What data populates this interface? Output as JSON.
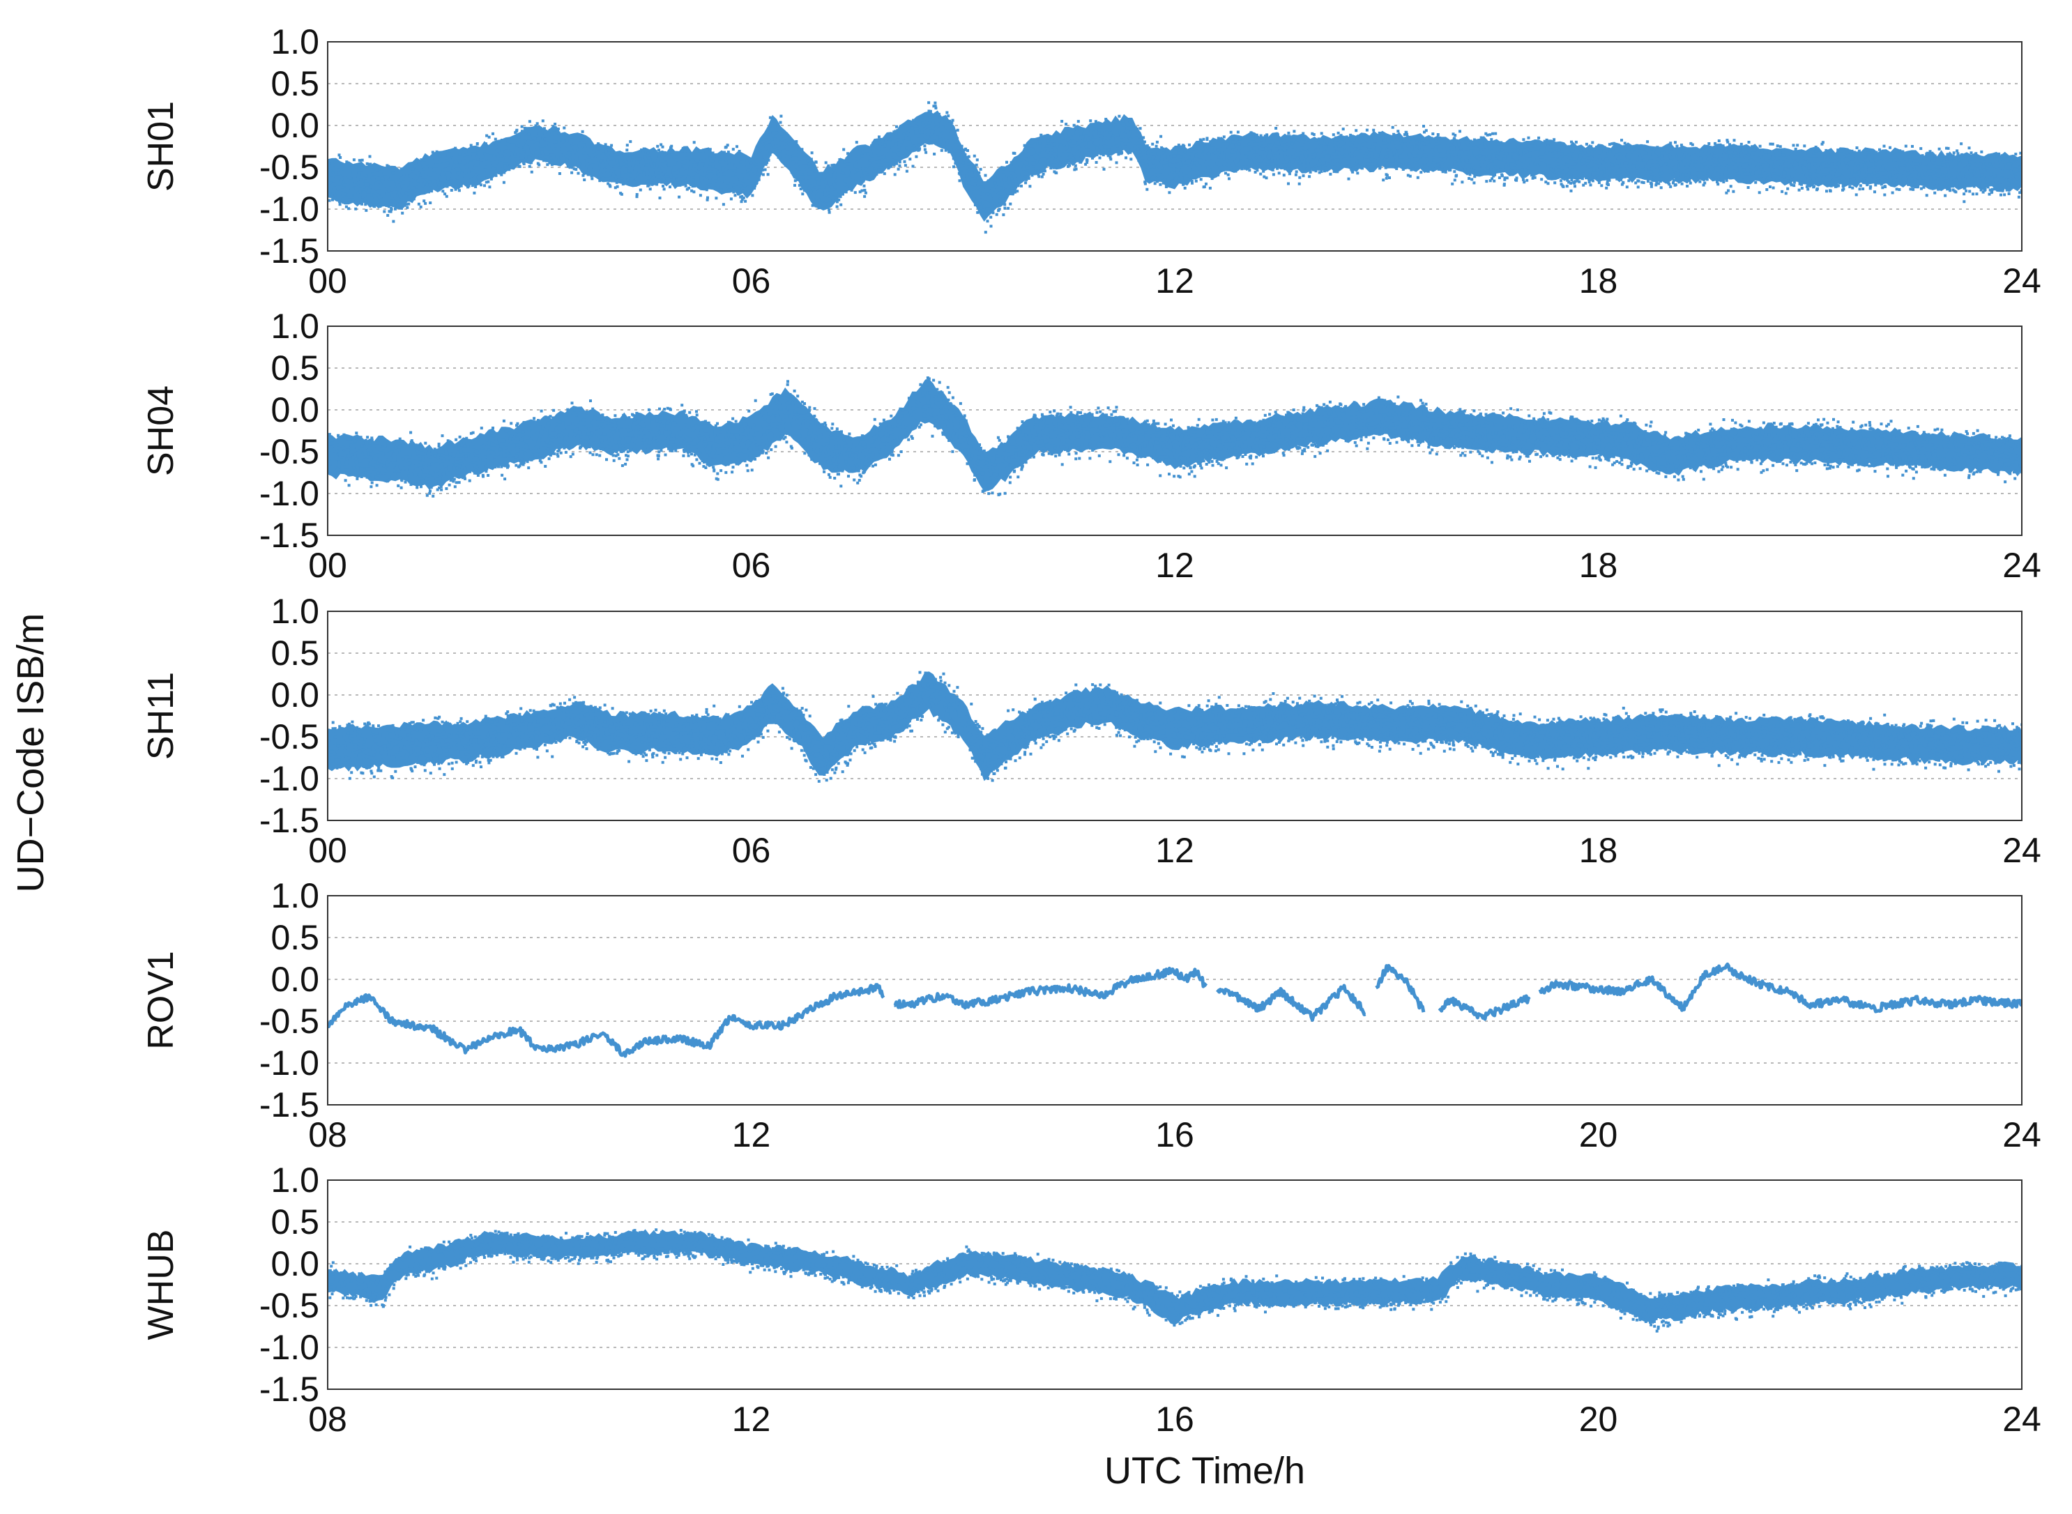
{
  "figure": {
    "ylabel": "UD−Code ISB/m",
    "xlabel": "UTC Time/h"
  },
  "colors": {
    "series": "#4391d0",
    "frame": "#333333",
    "grid": "#b8b8b8"
  },
  "chart_data": [
    {
      "type": "scatter",
      "panel_label": "SH01",
      "x_range_h": [
        0,
        24
      ],
      "x_ticks": [
        "00",
        "06",
        "12",
        "18",
        "24"
      ],
      "ylim": [
        -1.5,
        1.0
      ],
      "y_ticks": [
        "1.0",
        "0.5",
        "0.0",
        "-0.5",
        "-1.0",
        "-1.5"
      ],
      "grid": "horizontal-dotted",
      "style": "dense-band",
      "series": [
        {
          "name": "SH01",
          "x": [
            0,
            1,
            1.5,
            2,
            3,
            3.5,
            4,
            5,
            5.5,
            6,
            6.3,
            6.7,
            7,
            7.5,
            8,
            8.5,
            8.8,
            9,
            9.3,
            9.6,
            10,
            11,
            11.4,
            11.6,
            12,
            13,
            14,
            15,
            16,
            17,
            18,
            19,
            20,
            21,
            22,
            23,
            24
          ],
          "y": [
            -0.65,
            -0.75,
            -0.55,
            -0.5,
            -0.2,
            -0.3,
            -0.5,
            -0.5,
            -0.55,
            -0.6,
            -0.1,
            -0.5,
            -0.8,
            -0.5,
            -0.3,
            0.0,
            -0.1,
            -0.5,
            -0.9,
            -0.7,
            -0.35,
            -0.15,
            -0.1,
            -0.45,
            -0.5,
            -0.3,
            -0.35,
            -0.3,
            -0.35,
            -0.4,
            -0.45,
            -0.45,
            -0.45,
            -0.5,
            -0.5,
            -0.55,
            -0.55
          ],
          "spread": [
            0.35,
            0.35,
            0.32,
            0.32,
            0.28,
            0.3,
            0.3,
            0.32,
            0.35,
            0.35,
            0.3,
            0.32,
            0.35,
            0.32,
            0.3,
            0.3,
            0.3,
            0.32,
            0.35,
            0.32,
            0.3,
            0.3,
            0.3,
            0.3,
            0.32,
            0.3,
            0.3,
            0.3,
            0.3,
            0.3,
            0.3,
            0.3,
            0.3,
            0.3,
            0.3,
            0.3,
            0.3
          ]
        }
      ]
    },
    {
      "type": "scatter",
      "panel_label": "SH04",
      "x_range_h": [
        0,
        24
      ],
      "x_ticks": [
        "00",
        "06",
        "12",
        "18",
        "24"
      ],
      "ylim": [
        -1.5,
        1.0
      ],
      "y_ticks": [
        "1.0",
        "0.5",
        "0.0",
        "-0.5",
        "-1.0",
        "-1.5"
      ],
      "grid": "horizontal-dotted",
      "style": "dense-band",
      "series": [
        {
          "name": "SH04",
          "x": [
            0,
            1,
            1.5,
            2,
            3,
            3.5,
            4,
            5,
            5.5,
            6,
            6.5,
            7,
            7.5,
            8,
            8.5,
            9,
            9.3,
            9.6,
            10,
            11,
            12,
            13,
            14,
            15,
            16,
            17,
            18,
            18.5,
            19,
            20,
            21,
            22,
            23,
            24
          ],
          "y": [
            -0.55,
            -0.6,
            -0.7,
            -0.55,
            -0.35,
            -0.2,
            -0.3,
            -0.25,
            -0.45,
            -0.35,
            0.0,
            -0.45,
            -0.55,
            -0.3,
            0.15,
            -0.3,
            -0.75,
            -0.6,
            -0.3,
            -0.25,
            -0.45,
            -0.35,
            -0.2,
            -0.1,
            -0.25,
            -0.3,
            -0.35,
            -0.4,
            -0.55,
            -0.4,
            -0.4,
            -0.45,
            -0.5,
            -0.55
          ],
          "spread": [
            0.35,
            0.35,
            0.35,
            0.32,
            0.32,
            0.32,
            0.32,
            0.32,
            0.35,
            0.38,
            0.4,
            0.35,
            0.32,
            0.3,
            0.35,
            0.32,
            0.35,
            0.32,
            0.32,
            0.3,
            0.32,
            0.3,
            0.3,
            0.3,
            0.3,
            0.3,
            0.3,
            0.32,
            0.32,
            0.3,
            0.3,
            0.3,
            0.3,
            0.3
          ]
        }
      ]
    },
    {
      "type": "scatter",
      "panel_label": "SH11",
      "x_range_h": [
        0,
        24
      ],
      "x_ticks": [
        "00",
        "06",
        "12",
        "18",
        "24"
      ],
      "ylim": [
        -1.5,
        1.0
      ],
      "y_ticks": [
        "1.0",
        "0.5",
        "0.0",
        "-0.5",
        "-1.0",
        "-1.5"
      ],
      "grid": "horizontal-dotted",
      "style": "dense-band",
      "series": [
        {
          "name": "SH11",
          "x": [
            0,
            1,
            2,
            3,
            3.5,
            4,
            5,
            5.5,
            6,
            6.3,
            6.7,
            7,
            7.5,
            8,
            8.5,
            9,
            9.3,
            9.7,
            10,
            10.5,
            11,
            11.5,
            12,
            13,
            14,
            15,
            16,
            17,
            18,
            19,
            20,
            21,
            22,
            23,
            24
          ],
          "y": [
            -0.65,
            -0.6,
            -0.55,
            -0.4,
            -0.3,
            -0.45,
            -0.45,
            -0.5,
            -0.35,
            -0.1,
            -0.4,
            -0.75,
            -0.4,
            -0.3,
            0.05,
            -0.3,
            -0.75,
            -0.5,
            -0.35,
            -0.2,
            -0.1,
            -0.3,
            -0.4,
            -0.35,
            -0.3,
            -0.35,
            -0.35,
            -0.55,
            -0.5,
            -0.45,
            -0.5,
            -0.5,
            -0.55,
            -0.6,
            -0.6
          ],
          "spread": [
            0.35,
            0.35,
            0.32,
            0.3,
            0.3,
            0.32,
            0.32,
            0.32,
            0.32,
            0.3,
            0.32,
            0.35,
            0.32,
            0.3,
            0.32,
            0.32,
            0.35,
            0.32,
            0.3,
            0.3,
            0.3,
            0.3,
            0.32,
            0.3,
            0.3,
            0.3,
            0.3,
            0.3,
            0.3,
            0.3,
            0.3,
            0.3,
            0.3,
            0.3,
            0.3
          ]
        }
      ]
    },
    {
      "type": "line",
      "panel_label": "ROV1",
      "x_range_h": [
        8,
        24
      ],
      "x_ticks": [
        "08",
        "12",
        "16",
        "20",
        "24"
      ],
      "ylim": [
        -1.5,
        1.0
      ],
      "y_ticks": [
        "1.0",
        "0.5",
        "0.0",
        "-0.5",
        "-1.0",
        "-1.5"
      ],
      "grid": "horizontal-dotted",
      "style": "line-with-gaps",
      "series": [
        {
          "name": "ROV1",
          "x": [
            8.0,
            8.2,
            8.4,
            8.6,
            9.0,
            9.3,
            9.5,
            9.8,
            10.0,
            10.3,
            10.6,
            10.8,
            11.0,
            11.3,
            11.6,
            11.8,
            12.0,
            12.3,
            12.5,
            12.8,
            13.0,
            13.2,
            13.3,
            13.5,
            13.8,
            14.0,
            14.3,
            14.6,
            15.0,
            15.3,
            15.6,
            16.0,
            16.1,
            16.2,
            16.3,
            16.5,
            16.8,
            17.0,
            17.3,
            17.6,
            17.8,
            18.0,
            18.2,
            18.4,
            18.6,
            18.9,
            19.2,
            19.4,
            19.6,
            19.9,
            20.2,
            20.5,
            20.8,
            21.0,
            21.2,
            21.5,
            21.8,
            22.0,
            22.3,
            22.6,
            23.0,
            23.3,
            23.6,
            24.0
          ],
          "y": [
            -0.55,
            -0.3,
            -0.2,
            -0.5,
            -0.6,
            -0.85,
            -0.7,
            -0.6,
            -0.85,
            -0.8,
            -0.65,
            -0.9,
            -0.75,
            -0.7,
            -0.8,
            -0.45,
            -0.55,
            -0.55,
            -0.4,
            -0.2,
            -0.15,
            -0.1,
            -0.3,
            -0.3,
            -0.2,
            -0.3,
            -0.25,
            -0.15,
            -0.1,
            -0.2,
            0.0,
            0.1,
            0.0,
            0.1,
            -0.1,
            -0.15,
            -0.35,
            -0.15,
            -0.45,
            -0.1,
            -0.4,
            0.15,
            -0.05,
            -0.5,
            -0.25,
            -0.45,
            -0.3,
            -0.2,
            -0.05,
            -0.1,
            -0.15,
            0.0,
            -0.35,
            0.05,
            0.15,
            -0.05,
            -0.15,
            -0.3,
            -0.25,
            -0.35,
            -0.25,
            -0.3,
            -0.25,
            -0.3
          ],
          "gaps_h": [
            [
              13.25,
              13.35
            ],
            [
              16.3,
              16.4
            ],
            [
              17.8,
              17.9
            ],
            [
              18.35,
              18.5
            ],
            [
              19.35,
              19.45
            ]
          ]
        }
      ]
    },
    {
      "type": "scatter",
      "panel_label": "WHUB",
      "x_range_h": [
        8,
        24
      ],
      "x_ticks": [
        "08",
        "12",
        "16",
        "20",
        "24"
      ],
      "ylim": [
        -1.5,
        1.0
      ],
      "y_ticks": [
        "1.0",
        "0.5",
        "0.0",
        "-0.5",
        "-1.0",
        "-1.5"
      ],
      "grid": "horizontal-dotted",
      "style": "dense-band",
      "series": [
        {
          "name": "WHUB",
          "x": [
            8,
            8.5,
            8.7,
            9,
            9.5,
            10,
            10.5,
            11,
            11.5,
            12,
            12.5,
            13,
            13.5,
            14,
            14.5,
            15,
            15.5,
            15.8,
            16,
            16.5,
            17,
            17.5,
            18,
            18.5,
            18.7,
            19,
            19.5,
            20,
            20.5,
            21,
            21.5,
            22,
            22.5,
            23,
            23.5,
            24
          ],
          "y": [
            -0.2,
            -0.3,
            0.0,
            0.05,
            0.25,
            0.2,
            0.2,
            0.25,
            0.25,
            0.1,
            0.05,
            -0.1,
            -0.25,
            0.0,
            -0.05,
            -0.15,
            -0.25,
            -0.4,
            -0.55,
            -0.35,
            -0.35,
            -0.35,
            -0.35,
            -0.3,
            -0.05,
            -0.1,
            -0.25,
            -0.3,
            -0.55,
            -0.45,
            -0.4,
            -0.35,
            -0.3,
            -0.2,
            -0.15,
            -0.15
          ],
          "spread": [
            0.2,
            0.2,
            0.2,
            0.2,
            0.18,
            0.18,
            0.18,
            0.18,
            0.18,
            0.18,
            0.18,
            0.18,
            0.18,
            0.2,
            0.2,
            0.2,
            0.2,
            0.22,
            0.22,
            0.2,
            0.2,
            0.2,
            0.2,
            0.2,
            0.2,
            0.2,
            0.2,
            0.2,
            0.22,
            0.2,
            0.2,
            0.2,
            0.2,
            0.2,
            0.2,
            0.2
          ]
        }
      ]
    }
  ]
}
